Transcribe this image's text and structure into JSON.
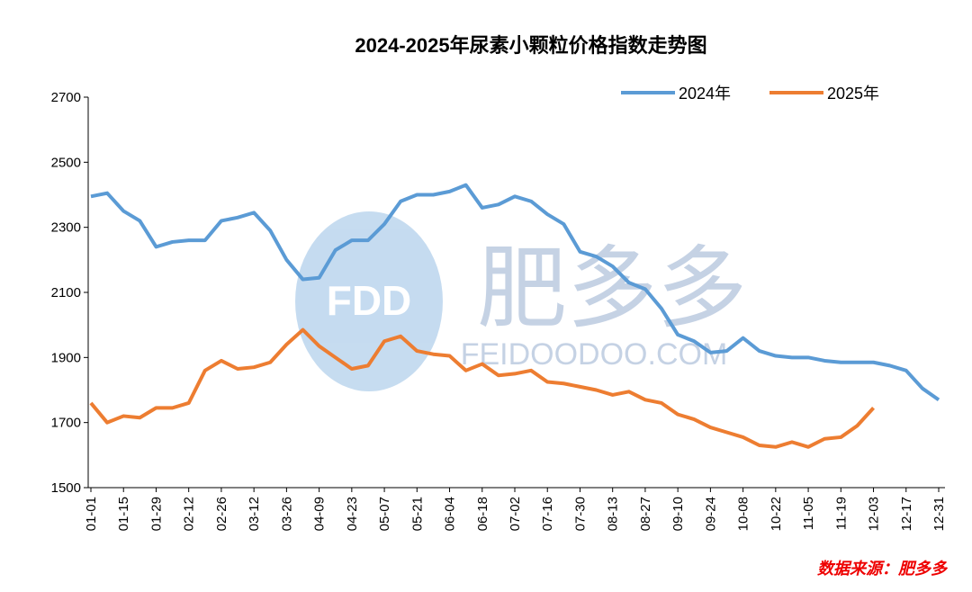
{
  "chart_data": {
    "type": "line",
    "title": "2024-2025年尿素小颗粒价格指数走势图",
    "source": "数据来源：肥多多",
    "watermark": [
      "FDD",
      "肥多多",
      "FEIDOODOO.COM"
    ],
    "categories": [
      "01-01",
      null,
      "01-15",
      null,
      "01-29",
      null,
      "02-12",
      null,
      "02-26",
      null,
      "03-12",
      null,
      "03-26",
      null,
      "04-09",
      null,
      "04-23",
      null,
      "05-07",
      null,
      "05-21",
      null,
      "06-04",
      null,
      "06-18",
      null,
      "07-02",
      null,
      "07-16",
      null,
      "07-30",
      null,
      "08-13",
      null,
      "08-27",
      null,
      "09-10",
      null,
      "09-24",
      null,
      "10-08",
      null,
      "10-22",
      null,
      "11-05",
      null,
      "11-19",
      null,
      "12-03",
      null,
      "12-17",
      null,
      "12-31"
    ],
    "series": [
      {
        "name": "2024年",
        "color": "#5b9bd5",
        "values": [
          2395,
          2405,
          2350,
          2320,
          2240,
          2255,
          2260,
          2260,
          2320,
          2330,
          2345,
          2290,
          2200,
          2140,
          2145,
          2230,
          2260,
          2260,
          2310,
          2380,
          2400,
          2400,
          2410,
          2430,
          2360,
          2370,
          2395,
          2380,
          2340,
          2310,
          2225,
          2210,
          2180,
          2130,
          2110,
          2050,
          1970,
          1950,
          1915,
          1920,
          1960,
          1920,
          1905,
          1900,
          1900,
          1890,
          1885,
          1885,
          1885,
          1875,
          1860,
          1805,
          1770
        ]
      },
      {
        "name": "2025年",
        "color": "#ed7d31",
        "values": [
          1760,
          1700,
          1720,
          1715,
          1745,
          1745,
          1760,
          1860,
          1890,
          1865,
          1870,
          1885,
          1940,
          1985,
          1935,
          1900,
          1865,
          1875,
          1950,
          1965,
          1920,
          1910,
          1905,
          1860,
          1880,
          1845,
          1850,
          1860,
          1825,
          1820,
          1810,
          1800,
          1785,
          1795,
          1770,
          1760,
          1725,
          1710,
          1685,
          1670,
          1655,
          1630,
          1625,
          1640,
          1625,
          1650,
          1655,
          1690,
          1745,
          null,
          null,
          null,
          null
        ]
      }
    ],
    "ylim": [
      1500,
      2700
    ],
    "yticks": [
      1500,
      1700,
      1900,
      2100,
      2300,
      2500,
      2700
    ],
    "legend": "top-right",
    "grid": false
  }
}
